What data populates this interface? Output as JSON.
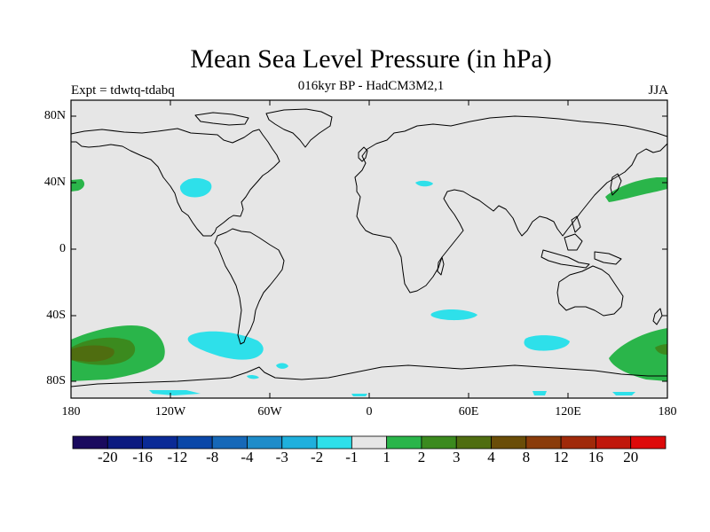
{
  "title": "Mean Sea Level Pressure (in hPa)",
  "subtitle": "016kyr BP - HadCM3M2,1",
  "left_label": "Expt = tdwtq-tdabq",
  "right_label": "JJA",
  "lat_labels": [
    "80N",
    "40N",
    "0",
    "40S",
    "80S"
  ],
  "lon_labels": [
    "180",
    "120W",
    "60W",
    "0",
    "60E",
    "120E",
    "180"
  ],
  "colorbar": {
    "colors": [
      "#1a0a5e",
      "#0c1a80",
      "#0a2a96",
      "#0a47a8",
      "#1668b8",
      "#1e8cc9",
      "#1fb0dd",
      "#2ee0ea",
      "#e6e6e6",
      "#2ab54a",
      "#3b8a1e",
      "#4f6d10",
      "#6a4d08",
      "#8a3c0a",
      "#a02a0a",
      "#c0180c",
      "#dd0a0a"
    ],
    "labels": [
      "-20",
      "-16",
      "-12",
      "-8",
      "-4",
      "-3",
      "-2",
      "-1",
      "1",
      "2",
      "3",
      "4",
      "8",
      "12",
      "16",
      "20"
    ]
  },
  "map": {
    "background_color": "#e6e6e6",
    "negative_color": "#2ee0ea",
    "positive_color_1": "#2ab54a",
    "positive_color_2": "#3b8a1e",
    "positive_color_3": "#4f6d10"
  }
}
